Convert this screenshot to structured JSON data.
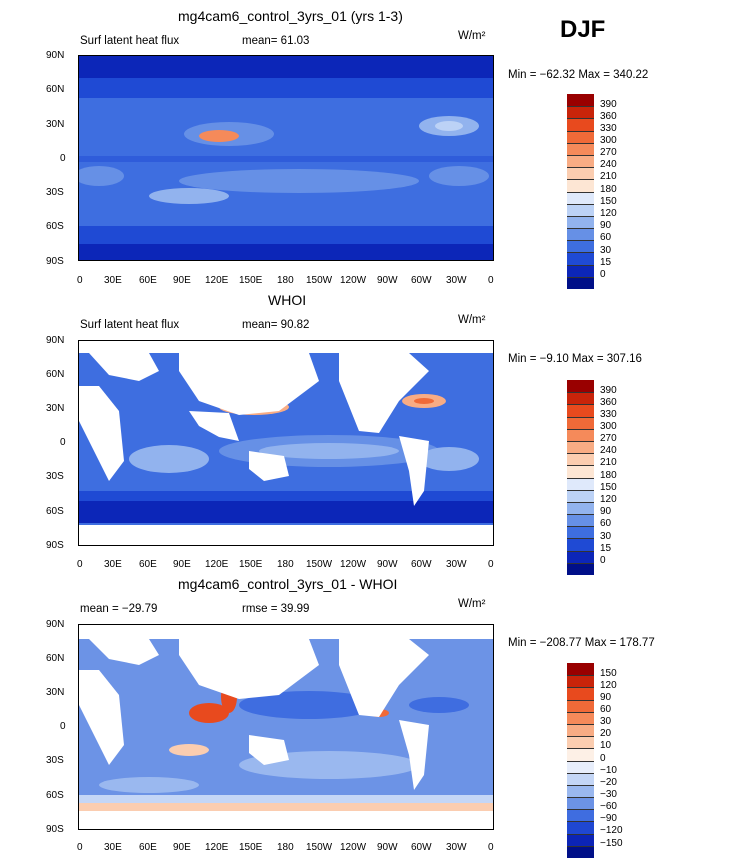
{
  "season": "DJF",
  "units": "W/m²",
  "x_ticks": [
    "0",
    "30E",
    "60E",
    "90E",
    "120E",
    "150E",
    "180",
    "150W",
    "120W",
    "90W",
    "60W",
    "30W",
    "0"
  ],
  "y_ticks": [
    "90N",
    "60N",
    "30N",
    "0",
    "30S",
    "60S",
    "90S"
  ],
  "panels": [
    {
      "title": "mg4cam6_control_3yrs_01 (yrs 1-3)",
      "left_label": "Surf latent heat flux",
      "mid_label": "mean=  61.03",
      "units": "W/m²",
      "minmax": "Min = −62.32 Max = 340.22",
      "colorbar": {
        "labels": [
          "390",
          "360",
          "330",
          "300",
          "270",
          "240",
          "210",
          "180",
          "150",
          "120",
          "90",
          "60",
          "30",
          "15",
          "0"
        ],
        "colors": [
          "#990000",
          "#c8240a",
          "#e84a1e",
          "#f06a38",
          "#f58a5a",
          "#f8ac84",
          "#fbcdb0",
          "#fde6d4",
          "#dfe9fb",
          "#bcd2f6",
          "#92b3ee",
          "#6690e6",
          "#3e6ee0",
          "#1f4ad4",
          "#0c26b8",
          "#000f88"
        ]
      }
    },
    {
      "title": "WHOI",
      "left_label": "Surf latent heat flux",
      "mid_label": "mean=  90.82",
      "units": "W/m²",
      "minmax": "Min =  −9.10 Max = 307.16",
      "colorbar": {
        "labels": [
          "390",
          "360",
          "330",
          "300",
          "270",
          "240",
          "210",
          "180",
          "150",
          "120",
          "90",
          "60",
          "30",
          "15",
          "0"
        ],
        "colors": [
          "#990000",
          "#c8240a",
          "#e84a1e",
          "#f06a38",
          "#f58a5a",
          "#f8ac84",
          "#fbcdb0",
          "#fde6d4",
          "#dfe9fb",
          "#bcd2f6",
          "#92b3ee",
          "#6690e6",
          "#3e6ee0",
          "#1f4ad4",
          "#0c26b8",
          "#000f88"
        ]
      }
    },
    {
      "title": "mg4cam6_control_3yrs_01 - WHOI",
      "left_label": "mean = −29.79",
      "mid_label": "rmse =  39.99",
      "units": "W/m²",
      "minmax": "Min = −208.77 Max = 178.77",
      "colorbar": {
        "labels": [
          "150",
          "120",
          "90",
          "60",
          "30",
          "20",
          "10",
          "0",
          "−10",
          "−20",
          "−30",
          "−60",
          "−90",
          "−120",
          "−150"
        ],
        "colors": [
          "#990000",
          "#c8240a",
          "#e84a1e",
          "#f06a38",
          "#f58a5a",
          "#f8ac84",
          "#fbcdb0",
          "#fdf0e6",
          "#e8eefb",
          "#c4d6f6",
          "#9ab8ef",
          "#6c93e6",
          "#3f6de0",
          "#1f47d2",
          "#0c24b6",
          "#000f88"
        ]
      }
    }
  ]
}
